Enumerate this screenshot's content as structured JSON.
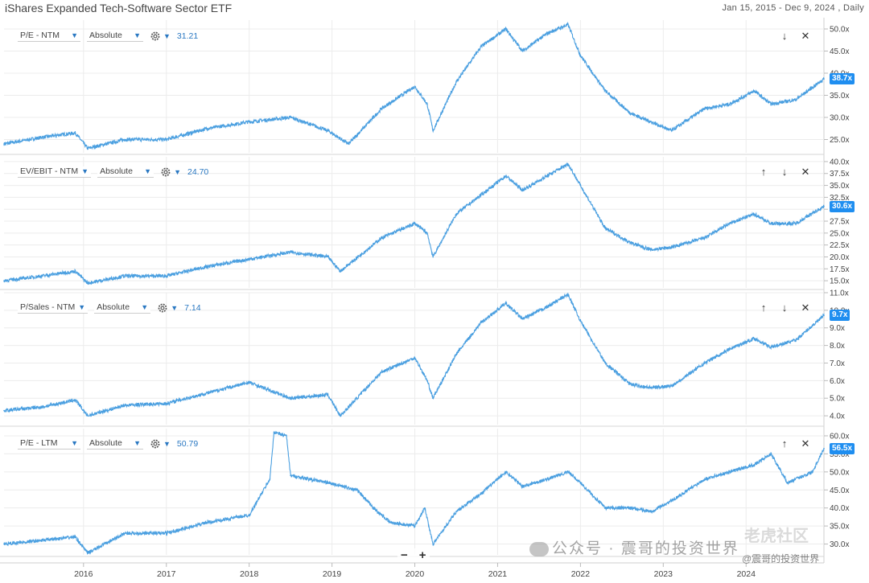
{
  "title": "iShares Expanded Tech-Software Sector ETF",
  "date_range": "Jan 15, 2015 - Dec 9, 2024 , Daily",
  "x_axis_ticks": [
    "2016",
    "2017",
    "2018",
    "2019",
    "2020",
    "2021",
    "2022",
    "2023",
    "2024"
  ],
  "zoom": {
    "minus": "−",
    "plus": "+"
  },
  "watermark": {
    "account": "公众号 · 震哥的投资世界",
    "handle": "@震哥的投资世界",
    "faint": "老虎社区"
  },
  "colors": {
    "line": "#4a9fe0",
    "badge": "#1f8ef0",
    "grid": "#ececec"
  },
  "panels": [
    {
      "metric": "P/E - NTM",
      "mode": "Absolute",
      "current": "31.21",
      "badge": "38.7x",
      "actions": [
        "↓",
        "✕"
      ]
    },
    {
      "metric": "EV/EBIT - NTM",
      "mode": "Absolute",
      "current": "24.70",
      "badge": "30.6x",
      "actions": [
        "↑",
        "↓",
        "✕"
      ]
    },
    {
      "metric": "P/Sales - NTM",
      "mode": "Absolute",
      "current": "7.14",
      "badge": "9.7x",
      "actions": [
        "↑",
        "↓",
        "✕"
      ]
    },
    {
      "metric": "P/E - LTM",
      "mode": "Absolute",
      "current": "50.79",
      "badge": "56.5x",
      "actions": [
        "↑",
        "✕"
      ]
    }
  ],
  "chart_data": [
    {
      "type": "line",
      "name": "P/E - NTM",
      "yticks": [
        "50.0x",
        "45.0x",
        "40.0x",
        "35.0x",
        "30.0x",
        "25.0x"
      ],
      "ylim": [
        22,
        52
      ],
      "x": [
        2015.04,
        2015.5,
        2015.9,
        2016.05,
        2016.5,
        2017.0,
        2017.5,
        2018.0,
        2018.5,
        2018.95,
        2019.2,
        2019.6,
        2020.0,
        2020.15,
        2020.22,
        2020.5,
        2020.8,
        2021.1,
        2021.3,
        2021.6,
        2021.85,
        2022.0,
        2022.3,
        2022.6,
        2022.85,
        2023.1,
        2023.5,
        2023.8,
        2024.1,
        2024.3,
        2024.6,
        2024.94
      ],
      "y": [
        24,
        25.5,
        26.5,
        23,
        25,
        25,
        27.5,
        29,
        30,
        27,
        24,
        32,
        37,
        33,
        27,
        38,
        46,
        50,
        45,
        49,
        51,
        44,
        36,
        31,
        29,
        27,
        32,
        33,
        36,
        33,
        34,
        38.7
      ]
    },
    {
      "type": "line",
      "name": "EV/EBIT - NTM",
      "yticks": [
        "40.0x",
        "37.5x",
        "35.0x",
        "32.5x",
        "30.0x",
        "27.5x",
        "25.0x",
        "22.5x",
        "20.0x",
        "17.5x",
        "15.0x"
      ],
      "ylim": [
        13.5,
        41
      ],
      "x": [
        2015.04,
        2015.5,
        2015.9,
        2016.05,
        2016.5,
        2017.0,
        2017.5,
        2018.0,
        2018.5,
        2018.95,
        2019.1,
        2019.6,
        2020.0,
        2020.15,
        2020.22,
        2020.5,
        2020.8,
        2021.1,
        2021.3,
        2021.6,
        2021.85,
        2022.0,
        2022.3,
        2022.6,
        2022.85,
        2023.1,
        2023.5,
        2023.8,
        2024.1,
        2024.3,
        2024.6,
        2024.94
      ],
      "y": [
        15,
        16,
        17,
        14.5,
        16,
        16,
        18,
        19.5,
        21,
        20,
        17,
        24,
        27,
        25,
        20,
        29,
        33,
        37,
        34,
        37,
        39.5,
        35,
        26,
        23,
        21.5,
        22,
        24,
        27,
        29,
        27,
        27,
        30.6
      ]
    },
    {
      "type": "line",
      "name": "P/Sales - NTM",
      "yticks": [
        "11.0x",
        "10.0x",
        "9.0x",
        "8.0x",
        "7.0x",
        "6.0x",
        "5.0x",
        "4.0x"
      ],
      "ylim": [
        3.5,
        11
      ],
      "x": [
        2015.04,
        2015.5,
        2015.9,
        2016.05,
        2016.5,
        2017.0,
        2017.5,
        2018.0,
        2018.5,
        2018.95,
        2019.1,
        2019.6,
        2020.0,
        2020.15,
        2020.22,
        2020.5,
        2020.8,
        2021.1,
        2021.3,
        2021.6,
        2021.85,
        2022.0,
        2022.3,
        2022.6,
        2022.85,
        2023.1,
        2023.5,
        2023.8,
        2024.1,
        2024.3,
        2024.6,
        2024.94
      ],
      "y": [
        4.3,
        4.5,
        4.9,
        4.0,
        4.6,
        4.7,
        5.3,
        5.9,
        5.0,
        5.2,
        4.0,
        6.5,
        7.3,
        6.0,
        5.0,
        7.5,
        9.3,
        10.4,
        9.5,
        10.2,
        10.9,
        9.4,
        7.0,
        5.8,
        5.6,
        5.7,
        7.0,
        7.8,
        8.4,
        7.9,
        8.3,
        9.7
      ]
    },
    {
      "type": "line",
      "name": "P/E - LTM",
      "yticks": [
        "60.0x",
        "55.0x",
        "50.0x",
        "45.0x",
        "40.0x",
        "35.0x",
        "30.0x"
      ],
      "ylim": [
        27,
        62
      ],
      "x": [
        2015.04,
        2015.5,
        2015.9,
        2016.05,
        2016.5,
        2017.0,
        2017.5,
        2018.0,
        2018.25,
        2018.3,
        2018.45,
        2018.5,
        2018.95,
        2019.3,
        2019.5,
        2019.7,
        2020.0,
        2020.12,
        2020.22,
        2020.5,
        2020.8,
        2021.1,
        2021.3,
        2021.6,
        2021.85,
        2022.0,
        2022.3,
        2022.6,
        2022.85,
        2023.1,
        2023.5,
        2023.8,
        2024.1,
        2024.3,
        2024.5,
        2024.8,
        2024.94
      ],
      "y": [
        30,
        31,
        32,
        27.5,
        33,
        33,
        36,
        38,
        48,
        61,
        60,
        49,
        47,
        45,
        40,
        36,
        35,
        40,
        30,
        39,
        44,
        50,
        46,
        48,
        50,
        47,
        40,
        40,
        39,
        42,
        48,
        50,
        52,
        55,
        47,
        50,
        56.5
      ]
    }
  ]
}
